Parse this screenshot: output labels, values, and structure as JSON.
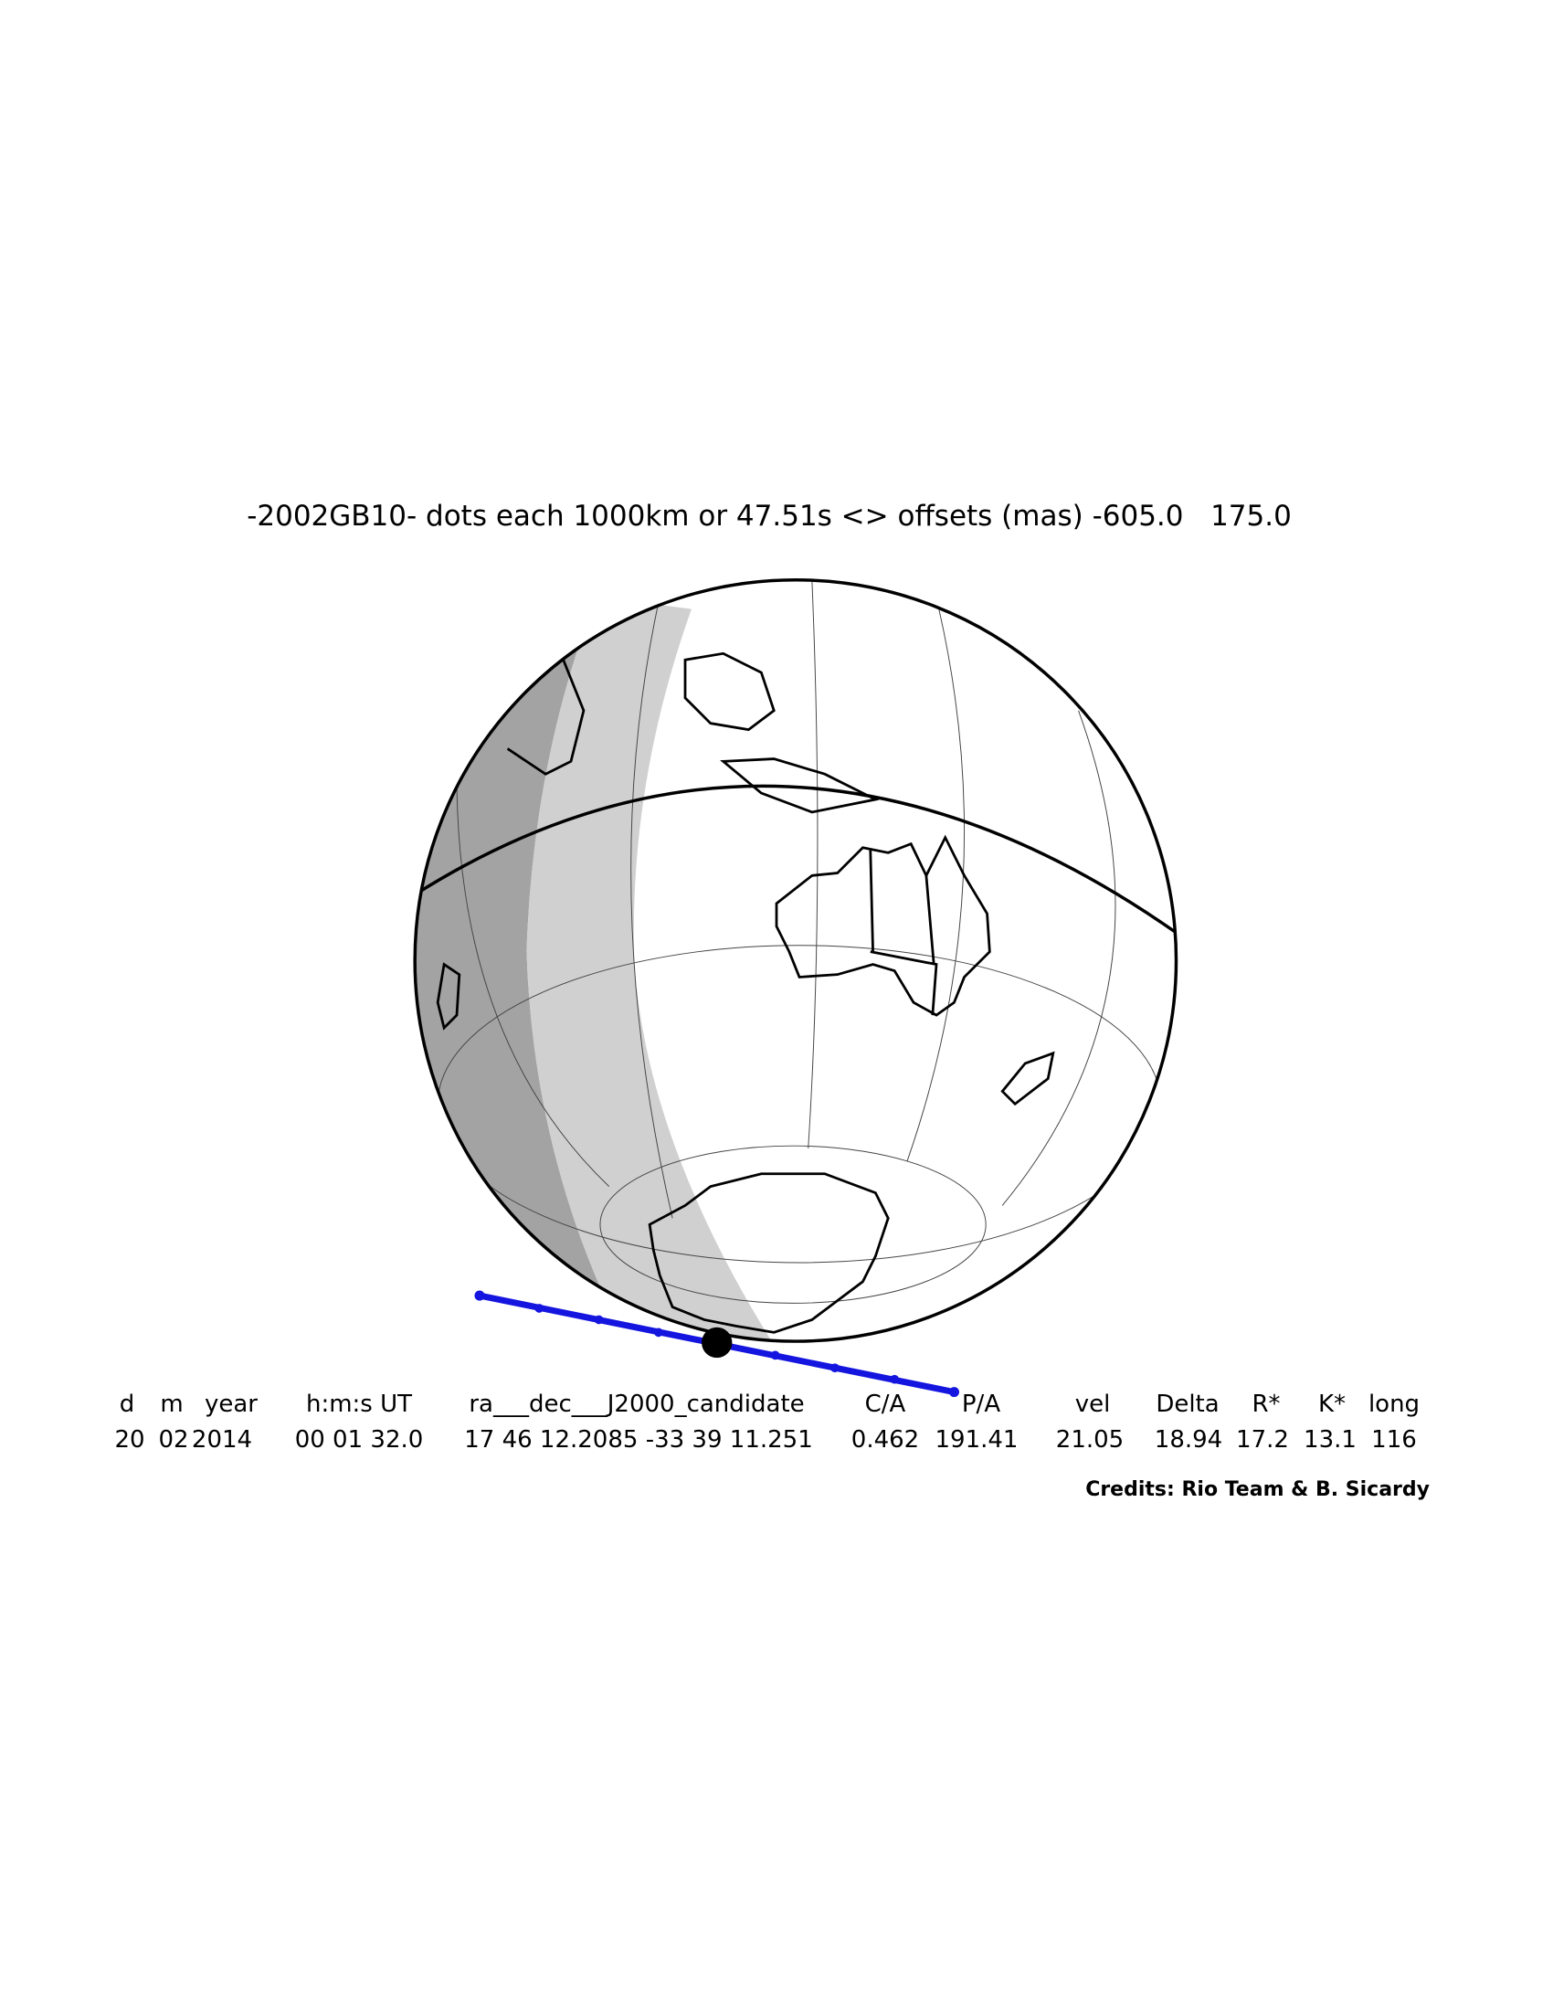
{
  "title": "-2002GB10- dots each 1000km or 47.51s <> offsets (mas) -605.0   175.0",
  "table": {
    "headers": [
      "d",
      "m",
      "year",
      "h:m:s UT",
      "ra___dec___J2000_candidate",
      "C/A",
      "P/A",
      "vel",
      "Delta",
      "R*",
      "K*",
      "long"
    ],
    "rows": [
      [
        "20",
        "02",
        "2014",
        "00 01 32.0",
        "17 46 12.2085 -33 39 11.251",
        "0.462",
        "191.41",
        "21.05",
        "18.94",
        "17.2",
        "13.1",
        "116"
      ]
    ]
  },
  "credits": "Credits: Rio Team & B. Sicardy"
}
